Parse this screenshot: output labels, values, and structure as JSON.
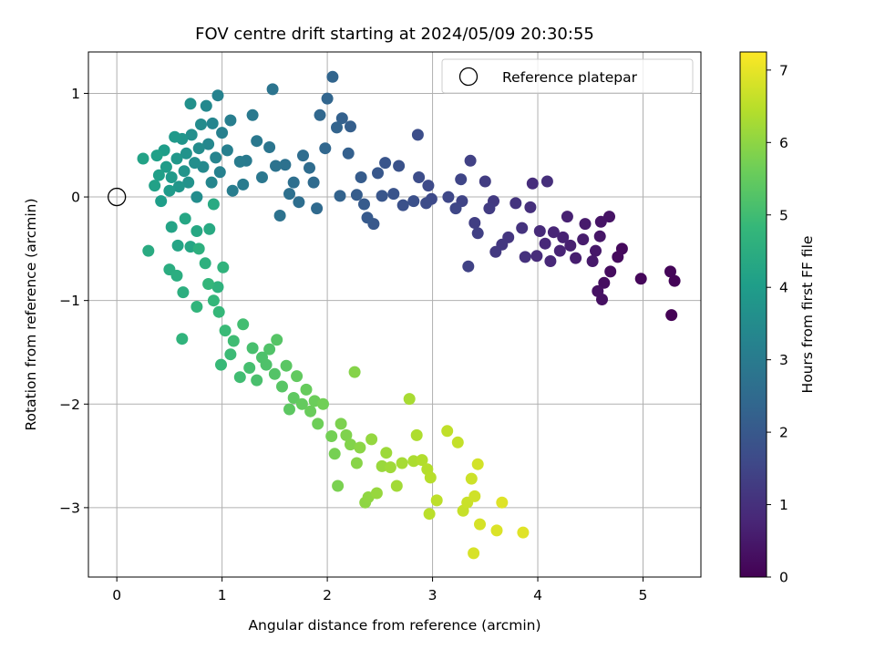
{
  "chart_data": {
    "type": "scatter",
    "title": "FOV centre drift starting at 2024/05/09 20:30:55",
    "xlabel": "Angular distance from reference (arcmin)",
    "ylabel": "Rotation from reference (arcmin)",
    "xlim": [
      -0.27,
      5.55
    ],
    "ylim": [
      -3.67,
      1.4
    ],
    "x_ticks": [
      0,
      1,
      2,
      3,
      4,
      5
    ],
    "x_tick_labels": [
      "0",
      "1",
      "2",
      "3",
      "4",
      "5"
    ],
    "y_ticks": [
      -3,
      -2,
      -1,
      0,
      1
    ],
    "y_tick_labels": [
      "−3",
      "−2",
      "−1",
      "0",
      "1"
    ],
    "grid": true,
    "legend": {
      "position": "top-right",
      "entries": [
        "Reference platepar"
      ]
    },
    "reference_point": {
      "x": 0,
      "y": 0,
      "label": "Reference platepar",
      "marker": "hollow-circle"
    },
    "colorbar": {
      "label": "Hours from first FF file",
      "range": [
        0,
        7.25
      ],
      "ticks": [
        0,
        1,
        2,
        3,
        4,
        5,
        6,
        7
      ],
      "tick_labels": [
        "0",
        "1",
        "2",
        "3",
        "4",
        "5",
        "6",
        "7"
      ],
      "colormap": "viridis",
      "colors": [
        "#440154",
        "#482878",
        "#3e4a89",
        "#31688e",
        "#26828e",
        "#1f9e89",
        "#35b779",
        "#6ece58",
        "#b5de2b",
        "#fde725"
      ]
    },
    "series": [
      {
        "points": [
          [
            5.27,
            -1.14,
            0.03
          ],
          [
            5.3,
            -0.81,
            0.06
          ],
          [
            5.26,
            -0.72,
            0.09
          ],
          [
            4.98,
            -0.79,
            0.13
          ],
          [
            4.8,
            -0.5,
            0.17
          ],
          [
            4.76,
            -0.58,
            0.2
          ],
          [
            4.69,
            -0.72,
            0.23
          ],
          [
            4.63,
            -0.83,
            0.27
          ],
          [
            4.61,
            -0.99,
            0.3
          ],
          [
            4.57,
            -0.91,
            0.33
          ],
          [
            4.68,
            -0.19,
            0.37
          ],
          [
            4.6,
            -0.24,
            0.4
          ],
          [
            4.59,
            -0.38,
            0.43
          ],
          [
            4.55,
            -0.52,
            0.47
          ],
          [
            4.52,
            -0.62,
            0.5
          ],
          [
            4.45,
            -0.26,
            0.53
          ],
          [
            4.43,
            -0.41,
            0.57
          ],
          [
            4.36,
            -0.59,
            0.6
          ],
          [
            4.31,
            -0.47,
            0.63
          ],
          [
            4.28,
            -0.19,
            0.67
          ],
          [
            4.24,
            -0.39,
            0.7
          ],
          [
            4.21,
            -0.52,
            0.73
          ],
          [
            4.15,
            -0.34,
            0.77
          ],
          [
            4.12,
            -0.62,
            0.8
          ],
          [
            4.07,
            -0.45,
            0.83
          ],
          [
            4.02,
            -0.33,
            0.87
          ],
          [
            3.99,
            -0.57,
            0.9
          ],
          [
            3.95,
            0.13,
            0.93
          ],
          [
            4.09,
            0.15,
            0.97
          ],
          [
            3.93,
            -0.1,
            1.0
          ],
          [
            3.88,
            -0.58,
            1.03
          ],
          [
            3.85,
            -0.3,
            1.07
          ],
          [
            3.79,
            -0.06,
            1.1
          ],
          [
            3.72,
            -0.39,
            1.13
          ],
          [
            3.66,
            -0.46,
            1.17
          ],
          [
            3.6,
            -0.53,
            1.2
          ],
          [
            3.58,
            -0.04,
            1.23
          ],
          [
            3.54,
            -0.11,
            1.27
          ],
          [
            3.5,
            0.15,
            1.3
          ],
          [
            3.4,
            -0.25,
            1.33
          ],
          [
            3.43,
            -0.35,
            1.37
          ],
          [
            3.36,
            0.35,
            1.4
          ],
          [
            3.34,
            -0.67,
            1.43
          ],
          [
            3.28,
            -0.04,
            1.47
          ],
          [
            3.27,
            0.17,
            1.5
          ],
          [
            3.22,
            -0.11,
            1.53
          ],
          [
            3.15,
            0.0,
            1.57
          ],
          [
            2.99,
            -0.02,
            1.6
          ],
          [
            2.96,
            0.11,
            1.63
          ],
          [
            2.94,
            -0.06,
            1.67
          ],
          [
            2.87,
            0.19,
            1.7
          ],
          [
            2.86,
            0.6,
            1.73
          ],
          [
            2.82,
            -0.04,
            1.77
          ],
          [
            2.72,
            -0.08,
            1.8
          ],
          [
            2.68,
            0.3,
            1.83
          ],
          [
            2.63,
            0.03,
            1.87
          ],
          [
            2.55,
            0.33,
            1.9
          ],
          [
            2.52,
            0.01,
            1.93
          ],
          [
            2.48,
            0.23,
            1.97
          ],
          [
            2.44,
            -0.26,
            2.0
          ],
          [
            2.38,
            -0.2,
            2.03
          ],
          [
            2.35,
            -0.07,
            2.07
          ],
          [
            2.32,
            0.19,
            2.1
          ],
          [
            2.28,
            0.02,
            2.13
          ],
          [
            2.22,
            0.68,
            2.17
          ],
          [
            2.2,
            0.42,
            2.2
          ],
          [
            2.14,
            0.76,
            2.23
          ],
          [
            2.12,
            0.01,
            2.27
          ],
          [
            2.09,
            0.67,
            2.3
          ],
          [
            2.05,
            1.16,
            2.33
          ],
          [
            2.0,
            0.95,
            2.37
          ],
          [
            1.98,
            0.47,
            2.4
          ],
          [
            1.93,
            0.79,
            2.43
          ],
          [
            1.9,
            -0.11,
            2.47
          ],
          [
            1.87,
            0.14,
            2.5
          ],
          [
            1.83,
            0.28,
            2.53
          ],
          [
            1.77,
            0.4,
            2.57
          ],
          [
            1.73,
            -0.05,
            2.6
          ],
          [
            1.68,
            0.14,
            2.63
          ],
          [
            1.64,
            0.03,
            2.67
          ],
          [
            1.6,
            0.31,
            2.7
          ],
          [
            1.55,
            -0.18,
            2.73
          ],
          [
            1.51,
            0.3,
            2.77
          ],
          [
            1.48,
            1.04,
            2.8
          ],
          [
            1.45,
            0.48,
            2.83
          ],
          [
            1.38,
            0.19,
            2.87
          ],
          [
            1.33,
            0.54,
            2.9
          ],
          [
            1.29,
            0.79,
            2.93
          ],
          [
            1.23,
            0.35,
            2.97
          ],
          [
            1.2,
            0.12,
            3.0
          ],
          [
            1.17,
            0.34,
            3.03
          ],
          [
            1.1,
            0.06,
            3.07
          ],
          [
            1.08,
            0.74,
            3.1
          ],
          [
            1.05,
            0.45,
            3.13
          ],
          [
            1.0,
            0.62,
            3.17
          ],
          [
            0.98,
            0.24,
            3.2
          ],
          [
            0.96,
            0.98,
            3.23
          ],
          [
            0.94,
            0.38,
            3.27
          ],
          [
            0.91,
            0.71,
            3.3
          ],
          [
            0.9,
            0.14,
            3.33
          ],
          [
            0.87,
            0.51,
            3.37
          ],
          [
            0.85,
            0.88,
            3.4
          ],
          [
            0.82,
            0.29,
            3.43
          ],
          [
            0.8,
            0.7,
            3.47
          ],
          [
            0.78,
            0.47,
            3.5
          ],
          [
            0.76,
            0.0,
            3.53
          ],
          [
            0.74,
            0.33,
            3.57
          ],
          [
            0.71,
            0.6,
            3.6
          ],
          [
            0.7,
            0.9,
            3.63
          ],
          [
            0.68,
            0.14,
            3.67
          ],
          [
            0.66,
            0.42,
            3.7
          ],
          [
            0.64,
            0.25,
            3.73
          ],
          [
            0.62,
            0.56,
            3.77
          ],
          [
            0.59,
            0.1,
            3.8
          ],
          [
            0.57,
            0.37,
            3.83
          ],
          [
            0.55,
            0.58,
            3.87
          ],
          [
            0.52,
            0.19,
            3.9
          ],
          [
            0.5,
            0.06,
            3.93
          ],
          [
            0.47,
            0.29,
            3.97
          ],
          [
            0.45,
            0.45,
            4.0
          ],
          [
            0.42,
            -0.04,
            4.03
          ],
          [
            0.4,
            0.21,
            4.07
          ],
          [
            0.38,
            0.4,
            4.1
          ],
          [
            0.36,
            0.11,
            4.13
          ],
          [
            0.25,
            0.37,
            4.17
          ],
          [
            0.52,
            -0.29,
            4.2
          ],
          [
            0.58,
            -0.47,
            4.23
          ],
          [
            0.65,
            -0.21,
            4.27
          ],
          [
            0.7,
            -0.48,
            4.3
          ],
          [
            0.76,
            -0.33,
            4.33
          ],
          [
            0.88,
            -0.31,
            4.37
          ],
          [
            0.92,
            -0.07,
            4.4
          ],
          [
            0.3,
            -0.52,
            4.43
          ],
          [
            0.5,
            -0.7,
            4.47
          ],
          [
            0.57,
            -0.76,
            4.5
          ],
          [
            0.63,
            -0.92,
            4.53
          ],
          [
            0.78,
            -0.5,
            4.57
          ],
          [
            0.84,
            -0.64,
            4.6
          ],
          [
            0.96,
            -0.87,
            4.63
          ],
          [
            1.01,
            -0.68,
            4.67
          ],
          [
            0.62,
            -1.37,
            4.7
          ],
          [
            0.76,
            -1.06,
            4.73
          ],
          [
            0.87,
            -0.84,
            4.77
          ],
          [
            0.92,
            -1.0,
            4.8
          ],
          [
            0.97,
            -1.11,
            4.83
          ],
          [
            0.99,
            -1.62,
            4.87
          ],
          [
            1.03,
            -1.29,
            4.9
          ],
          [
            1.08,
            -1.52,
            4.93
          ],
          [
            1.11,
            -1.39,
            4.97
          ],
          [
            1.17,
            -1.74,
            5.0
          ],
          [
            1.2,
            -1.23,
            5.03
          ],
          [
            1.26,
            -1.65,
            5.07
          ],
          [
            1.29,
            -1.46,
            5.1
          ],
          [
            1.33,
            -1.77,
            5.13
          ],
          [
            1.38,
            -1.55,
            5.17
          ],
          [
            1.42,
            -1.62,
            5.2
          ],
          [
            1.45,
            -1.47,
            5.23
          ],
          [
            1.5,
            -1.71,
            5.27
          ],
          [
            1.52,
            -1.38,
            5.3
          ],
          [
            1.57,
            -1.83,
            5.33
          ],
          [
            1.61,
            -1.63,
            5.37
          ],
          [
            1.64,
            -2.05,
            5.4
          ],
          [
            1.68,
            -1.94,
            5.43
          ],
          [
            1.71,
            -1.73,
            5.47
          ],
          [
            1.76,
            -2.0,
            5.5
          ],
          [
            1.8,
            -1.86,
            5.53
          ],
          [
            1.84,
            -2.07,
            5.57
          ],
          [
            1.88,
            -1.97,
            5.6
          ],
          [
            1.91,
            -2.19,
            5.63
          ],
          [
            1.96,
            -2.0,
            5.67
          ],
          [
            2.04,
            -2.31,
            5.7
          ],
          [
            2.07,
            -2.48,
            5.73
          ],
          [
            2.1,
            -2.79,
            5.77
          ],
          [
            2.13,
            -2.19,
            5.8
          ],
          [
            2.18,
            -2.3,
            5.83
          ],
          [
            2.22,
            -2.39,
            5.87
          ],
          [
            2.26,
            -1.69,
            5.9
          ],
          [
            2.28,
            -2.57,
            5.93
          ],
          [
            2.31,
            -2.42,
            5.97
          ],
          [
            2.36,
            -2.95,
            6.0
          ],
          [
            2.39,
            -2.9,
            6.03
          ],
          [
            2.42,
            -2.34,
            6.07
          ],
          [
            2.47,
            -2.86,
            6.1
          ],
          [
            2.52,
            -2.6,
            6.13
          ],
          [
            2.56,
            -2.47,
            6.17
          ],
          [
            2.6,
            -2.61,
            6.2
          ],
          [
            2.66,
            -2.79,
            6.23
          ],
          [
            2.71,
            -2.57,
            6.27
          ],
          [
            2.78,
            -1.95,
            6.3
          ],
          [
            2.82,
            -2.55,
            6.33
          ],
          [
            2.85,
            -2.3,
            6.37
          ],
          [
            2.9,
            -2.54,
            6.4
          ],
          [
            2.95,
            -2.63,
            6.43
          ],
          [
            2.98,
            -2.71,
            6.47
          ],
          [
            2.97,
            -3.06,
            6.5
          ],
          [
            3.04,
            -2.93,
            6.53
          ],
          [
            3.14,
            -2.26,
            6.57
          ],
          [
            3.24,
            -2.37,
            6.6
          ],
          [
            3.29,
            -3.03,
            6.63
          ],
          [
            3.33,
            -2.95,
            6.67
          ],
          [
            3.37,
            -2.72,
            6.7
          ],
          [
            3.4,
            -2.89,
            6.73
          ],
          [
            3.43,
            -2.58,
            6.77
          ],
          [
            3.45,
            -3.16,
            6.8
          ],
          [
            3.39,
            -3.44,
            6.83
          ],
          [
            3.61,
            -3.22,
            6.87
          ],
          [
            3.66,
            -2.95,
            6.9
          ],
          [
            3.86,
            -3.24,
            6.93
          ]
        ]
      }
    ]
  }
}
